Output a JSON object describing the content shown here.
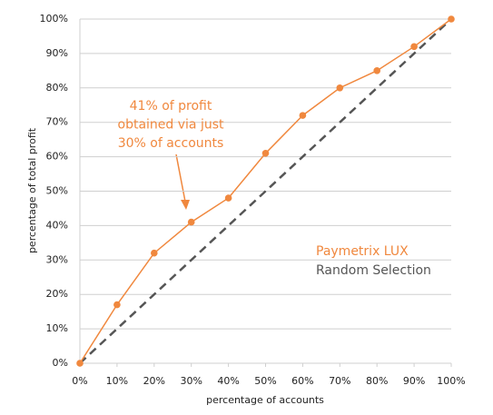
{
  "chart_data": {
    "type": "line",
    "x_label": "percentage of accounts",
    "y_label": "percentage of total profit",
    "x": [
      0,
      10,
      20,
      30,
      40,
      50,
      60,
      70,
      80,
      90,
      100
    ],
    "series": [
      {
        "name": "Paymetrix LUX",
        "color": "#f0883e",
        "markers": true,
        "dashed": false,
        "values": [
          0,
          17,
          32,
          41,
          48,
          61,
          72,
          80,
          85,
          92,
          100
        ]
      },
      {
        "name": "Random Selection",
        "color": "#555555",
        "markers": false,
        "dashed": true,
        "values": [
          0,
          10,
          20,
          30,
          40,
          50,
          60,
          70,
          80,
          90,
          100
        ]
      }
    ],
    "xlim": [
      0,
      100
    ],
    "ylim": [
      0,
      100
    ],
    "xticks": [
      {
        "value": 0,
        "label": "0%"
      },
      {
        "value": 10,
        "label": "10%"
      },
      {
        "value": 20,
        "label": "20%"
      },
      {
        "value": 30,
        "label": "30%"
      },
      {
        "value": 40,
        "label": "40%"
      },
      {
        "value": 50,
        "label": "50%"
      },
      {
        "value": 60,
        "label": "60%"
      },
      {
        "value": 70,
        "label": "70%"
      },
      {
        "value": 80,
        "label": "80%"
      },
      {
        "value": 90,
        "label": "90%"
      },
      {
        "value": 100,
        "label": "100%"
      }
    ],
    "yticks": [
      {
        "value": 0,
        "label": "0%"
      },
      {
        "value": 10,
        "label": "10%"
      },
      {
        "value": 20,
        "label": "20%"
      },
      {
        "value": 30,
        "label": "30%"
      },
      {
        "value": 40,
        "label": "40%"
      },
      {
        "value": 50,
        "label": "50%"
      },
      {
        "value": 60,
        "label": "60%"
      },
      {
        "value": 70,
        "label": "70%"
      },
      {
        "value": 80,
        "label": "80%"
      },
      {
        "value": 90,
        "label": "90%"
      },
      {
        "value": 100,
        "label": "100%"
      }
    ],
    "grid": true,
    "legend": "right",
    "annotation": {
      "lines": [
        "41% of profit",
        "obtained via just",
        "30% of accounts"
      ]
    }
  }
}
